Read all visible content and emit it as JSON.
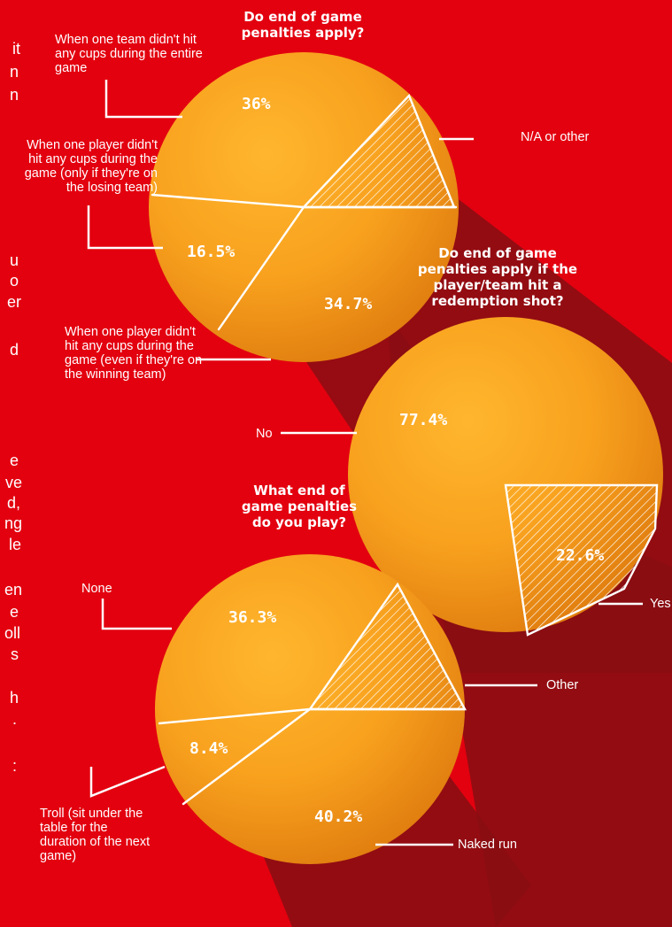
{
  "colors": {
    "background": "#e3000f",
    "ball": "#f7a21f",
    "ink": "#ffffff"
  },
  "edge_text": {
    "left": [
      "it",
      "n",
      "n",
      "u",
      "o",
      "er",
      "d",
      "e",
      "ve",
      "d,",
      "ng",
      "le",
      "en",
      "e",
      "oll",
      "s",
      "h",
      ".",
      ":"
    ]
  },
  "chart_data": [
    {
      "type": "pie",
      "title": "Do end of game penalties apply?",
      "slices": [
        {
          "label": "When one team didn't hit any cups during the entire game",
          "value": 36
        },
        {
          "label": "When one player didn't hit any cups during the game (only if they're on the losing team)",
          "value": 16.5
        },
        {
          "label": "When one player didn't hit any cups during the game (even if they're on the winning team)",
          "value": 34.7
        },
        {
          "label": "N/A or other",
          "value": null
        }
      ],
      "value_labels": [
        "36%",
        "16.5%",
        "34.7%"
      ]
    },
    {
      "type": "pie",
      "title": "Do end of game penalties apply if the player/team hit a redemption shot?",
      "slices": [
        {
          "label": "No",
          "value": 77.4
        },
        {
          "label": "Yes",
          "value": 22.6
        }
      ],
      "value_labels": [
        "77.4%",
        "22.6%"
      ]
    },
    {
      "type": "pie",
      "title": "What end of game penalties do you play?",
      "slices": [
        {
          "label": "None",
          "value": 36.3
        },
        {
          "label": "Troll (sit under the table for the duration of the next game)",
          "value": 8.4
        },
        {
          "label": "Naked run",
          "value": 40.2
        },
        {
          "label": "Other",
          "value": null
        }
      ],
      "value_labels": [
        "36.3%",
        "8.4%",
        "40.2%"
      ]
    }
  ]
}
